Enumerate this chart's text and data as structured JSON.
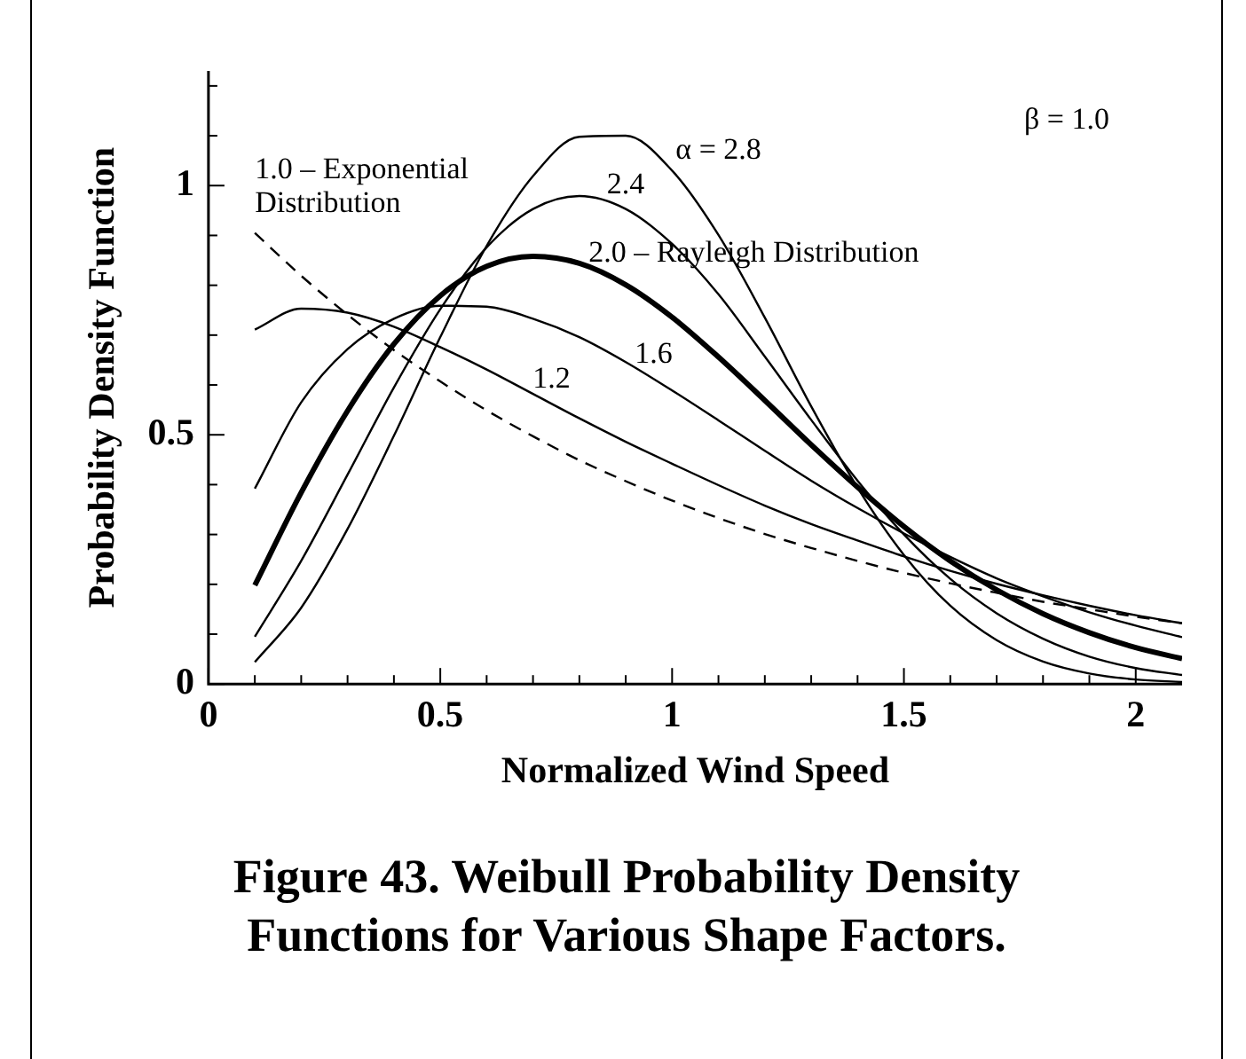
{
  "chart_data": {
    "type": "line",
    "title": "Figure 43.  Weibull Probability Density Functions for Various Shape Factors.",
    "xlabel": "Normalized Wind Speed",
    "ylabel": "Probability Density Function",
    "annotations": [
      "β = 1.0"
    ],
    "x": [
      0.1,
      0.2,
      0.3,
      0.4,
      0.5,
      0.6,
      0.7,
      0.8,
      0.9,
      1.0,
      1.1,
      1.2,
      1.3,
      1.4,
      1.5,
      1.6,
      1.7,
      1.8,
      1.9,
      2.0,
      2.1
    ],
    "series": [
      {
        "name": "1.0 – Exponential Distribution",
        "color": "#000000",
        "line_style": "dashed",
        "values": [
          0.905,
          0.819,
          0.741,
          0.67,
          0.607,
          0.549,
          0.497,
          0.449,
          0.407,
          0.368,
          0.333,
          0.301,
          0.273,
          0.247,
          0.223,
          0.202,
          0.183,
          0.165,
          0.15,
          0.135,
          0.122
        ]
      },
      {
        "name": "1.2",
        "color": "#000000",
        "values": [
          0.711,
          0.753,
          0.745,
          0.717,
          0.676,
          0.631,
          0.582,
          0.533,
          0.486,
          0.442,
          0.399,
          0.358,
          0.321,
          0.288,
          0.256,
          0.227,
          0.201,
          0.178,
          0.157,
          0.138,
          0.122
        ]
      },
      {
        "name": "1.6",
        "color": "#000000",
        "values": [
          0.392,
          0.565,
          0.672,
          0.733,
          0.759,
          0.757,
          0.733,
          0.696,
          0.646,
          0.589,
          0.529,
          0.468,
          0.408,
          0.353,
          0.302,
          0.255,
          0.212,
          0.176,
          0.144,
          0.117,
          0.094
        ]
      },
      {
        "name": "2.0 – Rayleigh Distribution",
        "color": "#000000",
        "values": [
          0.198,
          0.384,
          0.548,
          0.682,
          0.779,
          0.838,
          0.858,
          0.844,
          0.801,
          0.736,
          0.656,
          0.569,
          0.48,
          0.395,
          0.316,
          0.247,
          0.189,
          0.141,
          0.103,
          0.073,
          0.051
        ]
      },
      {
        "name": "2.4",
        "color": "#000000",
        "values": [
          0.095,
          0.247,
          0.42,
          0.595,
          0.752,
          0.876,
          0.953,
          0.979,
          0.953,
          0.883,
          0.782,
          0.657,
          0.53,
          0.408,
          0.3,
          0.211,
          0.142,
          0.091,
          0.055,
          0.032,
          0.018
        ]
      },
      {
        "name": "α = 2.8",
        "color": "#000000",
        "values": [
          0.044,
          0.153,
          0.311,
          0.498,
          0.696,
          0.879,
          1.019,
          1.098,
          1.1,
          1.03,
          0.901,
          0.735,
          0.557,
          0.394,
          0.259,
          0.157,
          0.088,
          0.045,
          0.021,
          0.009,
          0.004
        ]
      }
    ],
    "xlim": [
      0,
      2.1
    ],
    "ylim": [
      0,
      1.23
    ],
    "xticks": [
      0,
      {
        "value": 0.1,
        "label": null
      },
      {
        "value": 0.2,
        "label": null
      },
      {
        "value": 0.3,
        "label": null
      },
      {
        "value": 0.4,
        "label": null
      },
      0.5,
      {
        "value": 0.6,
        "label": null
      },
      {
        "value": 0.7,
        "label": null
      },
      {
        "value": 0.8,
        "label": null
      },
      {
        "value": 0.9,
        "label": null
      },
      1,
      {
        "value": 1.1,
        "label": null
      },
      {
        "value": 1.2,
        "label": null
      },
      {
        "value": 1.3,
        "label": null
      },
      {
        "value": 1.4,
        "label": null
      },
      1.5,
      {
        "value": 1.6,
        "label": null
      },
      {
        "value": 1.7,
        "label": null
      },
      {
        "value": 1.8,
        "label": null
      },
      {
        "value": 1.9,
        "label": null
      },
      2
    ],
    "yticks": [
      0,
      {
        "value": 0.1,
        "label": null
      },
      {
        "value": 0.2,
        "label": null
      },
      {
        "value": 0.3,
        "label": null
      },
      {
        "value": 0.4,
        "label": null
      },
      0.5,
      {
        "value": 0.6,
        "label": null
      },
      {
        "value": 0.7,
        "label": null
      },
      {
        "value": 0.8,
        "label": null
      },
      {
        "value": 0.9,
        "label": null
      },
      1,
      {
        "value": 1.1,
        "label": null
      },
      {
        "value": 1.2,
        "label": null
      }
    ],
    "grid": false,
    "legend": false,
    "marker": "none",
    "line_style": "solid"
  }
}
